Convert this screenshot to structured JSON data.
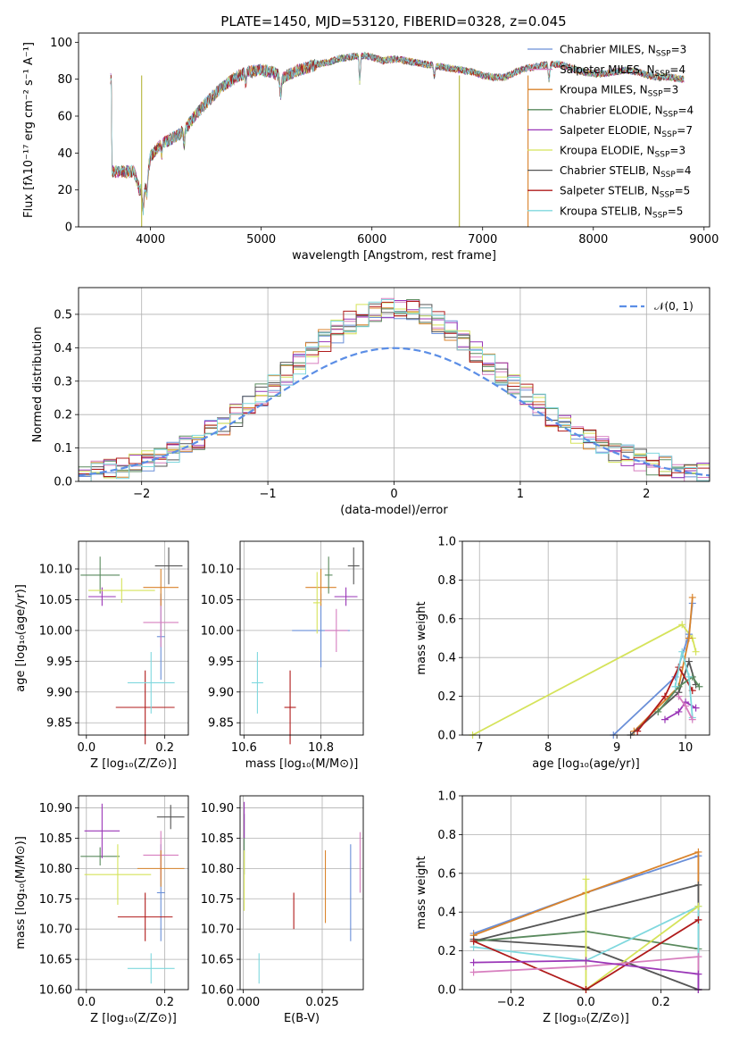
{
  "figure_title": "PLATE=1450, MJD=53120, FIBERID=0328, z=0.045",
  "colors": {
    "Chabrier MILES": "#6a8fd8",
    "Salpeter MILES": "#d77fbf",
    "Kroupa MILES": "#d9832b",
    "Chabrier ELODIE": "#5a8a5e",
    "Salpeter ELODIE": "#9a36b7",
    "Kroupa ELODIE": "#d5e35a",
    "Chabrier STELIB": "#555555",
    "Salpeter STELIB": "#b01b1b",
    "Kroupa STELIB": "#7fd8de"
  },
  "labels": {
    "spec_xlabel": "wavelength [Angstrom, rest frame]",
    "spec_ylabel": "Flux [fλ10⁻¹⁷ erg cm⁻² s⁻¹ A⁻¹]",
    "hist_xlabel": "(data-model)/error",
    "hist_ylabel": "Normed distribution",
    "normal_label": "𝒩(0, 1)",
    "z_label": "Z [log₁₀(Z/Z⊙)]",
    "mass_label": "mass [log₁₀(M/M⊙)]",
    "age_label": "age  [log₁₀(age/yr)]",
    "ebv_label": "E(B-V)",
    "mw_label": "mass weight"
  },
  "chart_data": [
    {
      "type": "line",
      "panel": "spectrum",
      "title": "PLATE=1450, MJD=53120, FIBERID=0328, z=0.045",
      "xlabel": "wavelength [Angstrom, rest frame]",
      "ylabel": "Flux [fλ10⁻¹⁷ erg cm⁻² s⁻¹ A⁻¹]",
      "xlim": [
        3350,
        9050
      ],
      "ylim": [
        0,
        105
      ],
      "xticks": [
        4000,
        5000,
        6000,
        7000,
        8000,
        9000
      ],
      "yticks": [
        0,
        20,
        40,
        60,
        80,
        100
      ],
      "continuum": [
        [
          3650,
          30
        ],
        [
          3850,
          30
        ],
        [
          3900,
          20
        ],
        [
          3950,
          22
        ],
        [
          4000,
          38
        ],
        [
          4100,
          45
        ],
        [
          4200,
          48
        ],
        [
          4300,
          52
        ],
        [
          4400,
          60
        ],
        [
          4500,
          67
        ],
        [
          4600,
          73
        ],
        [
          4700,
          78
        ],
        [
          4800,
          82
        ],
        [
          4900,
          84
        ],
        [
          5000,
          85
        ],
        [
          5100,
          84
        ],
        [
          5200,
          81
        ],
        [
          5300,
          84
        ],
        [
          5400,
          86
        ],
        [
          5500,
          88
        ],
        [
          5600,
          89
        ],
        [
          5700,
          91
        ],
        [
          5800,
          92
        ],
        [
          5900,
          93
        ],
        [
          6000,
          92
        ],
        [
          6100,
          90
        ],
        [
          6200,
          91
        ],
        [
          6300,
          90
        ],
        [
          6400,
          89
        ],
        [
          6500,
          88
        ],
        [
          6600,
          87
        ],
        [
          6700,
          86
        ],
        [
          6800,
          85
        ],
        [
          6900,
          84
        ],
        [
          7000,
          82
        ],
        [
          7100,
          81
        ],
        [
          7200,
          81
        ],
        [
          7300,
          84
        ],
        [
          7400,
          86
        ],
        [
          7500,
          87
        ],
        [
          7600,
          88
        ],
        [
          7700,
          88
        ],
        [
          7800,
          86
        ],
        [
          7900,
          84
        ],
        [
          8000,
          83
        ],
        [
          8100,
          83
        ],
        [
          8200,
          84
        ],
        [
          8300,
          85
        ],
        [
          8400,
          84
        ],
        [
          8500,
          82
        ],
        [
          8600,
          81
        ],
        [
          8700,
          81
        ],
        [
          8800,
          80
        ]
      ],
      "spikes": [
        {
          "x": 3920,
          "color": "#b5b53a"
        },
        {
          "x": 6790,
          "color": "#b5b53a"
        },
        {
          "x": 7410,
          "color": "#d9832b"
        }
      ],
      "legend": [
        {
          "name": "Chabrier MILES",
          "n": "3"
        },
        {
          "name": "Salpeter MILES",
          "n": "4"
        },
        {
          "name": "Kroupa MILES",
          "n": "3"
        },
        {
          "name": "Chabrier ELODIE",
          "n": "4"
        },
        {
          "name": "Salpeter ELODIE",
          "n": "7"
        },
        {
          "name": "Kroupa ELODIE",
          "n": "3"
        },
        {
          "name": "Chabrier STELIB",
          "n": "4"
        },
        {
          "name": "Salpeter STELIB",
          "n": "5"
        },
        {
          "name": "Kroupa STELIB",
          "n": "5"
        }
      ],
      "legend_placement": "upper right"
    },
    {
      "type": "line",
      "panel": "residual-histogram",
      "xlabel": "(data-model)/error",
      "ylabel": "Normed distribution",
      "xlim": [
        -2.5,
        2.5
      ],
      "ylim": [
        0,
        0.58
      ],
      "xticks": [
        -2,
        -1,
        0,
        1,
        2
      ],
      "yticks": [
        0.0,
        0.1,
        0.2,
        0.3,
        0.4,
        0.5
      ],
      "bin_width": 0.1,
      "reference": {
        "name": "𝒩(0, 1)",
        "color": "#5b8ee6"
      },
      "legend_placement": "upper right",
      "grid": true
    },
    {
      "type": "scatter",
      "panel": "age-vs-Z",
      "xlim": [
        -0.02,
        0.26
      ],
      "ylim": [
        9.83,
        10.145
      ],
      "xticks": [
        0.0,
        0.2
      ],
      "yticks": [
        9.85,
        9.9,
        9.95,
        10.0,
        10.05,
        10.1
      ],
      "points": [
        {
          "series": "Chabrier MILES",
          "x": 0.19,
          "y": 9.99,
          "xe": 0.01,
          "ye": 0.07
        },
        {
          "series": "Salpeter MILES",
          "x": 0.19,
          "y": 10.013,
          "xe": 0.045,
          "ye": 0.04
        },
        {
          "series": "Kroupa MILES",
          "x": 0.19,
          "y": 10.07,
          "xe": 0.045,
          "ye": 0.03
        },
        {
          "series": "Chabrier ELODIE",
          "x": 0.035,
          "y": 10.09,
          "xe": 0.05,
          "ye": 0.03
        },
        {
          "series": "Salpeter ELODIE",
          "x": 0.04,
          "y": 10.055,
          "xe": 0.035,
          "ye": 0.015
        },
        {
          "series": "Kroupa ELODIE",
          "x": 0.09,
          "y": 10.065,
          "xe": 0.085,
          "ye": 0.02
        },
        {
          "series": "Chabrier STELIB",
          "x": 0.21,
          "y": 10.105,
          "xe": 0.035,
          "ye": 0.03
        },
        {
          "series": "Salpeter STELIB",
          "x": 0.15,
          "y": 9.875,
          "xe": 0.075,
          "ye": 0.06
        },
        {
          "series": "Kroupa STELIB",
          "x": 0.165,
          "y": 9.915,
          "xe": 0.06,
          "ye": 0.05
        }
      ]
    },
    {
      "type": "scatter",
      "panel": "age-vs-mass",
      "xlim": [
        10.59,
        10.91
      ],
      "ylim": [
        9.83,
        10.145
      ],
      "xticks": [
        10.6,
        10.8
      ],
      "yticks": [
        9.85,
        9.9,
        9.95,
        10.0,
        10.05,
        10.1
      ],
      "points": [
        {
          "series": "Chabrier MILES",
          "x": 10.8,
          "y": 10.0,
          "xe": 0.075,
          "ye": 0.06
        },
        {
          "series": "Salpeter MILES",
          "x": 10.84,
          "y": 10.0,
          "xe": 0.03,
          "ye": 0.035
        },
        {
          "series": "Kroupa MILES",
          "x": 10.8,
          "y": 10.07,
          "xe": 0.04,
          "ye": 0.03
        },
        {
          "series": "Chabrier ELODIE",
          "x": 10.82,
          "y": 10.09,
          "xe": 0.01,
          "ye": 0.03
        },
        {
          "series": "Salpeter ELODIE",
          "x": 10.865,
          "y": 10.055,
          "xe": 0.03,
          "ye": 0.015
        },
        {
          "series": "Kroupa ELODIE",
          "x": 10.79,
          "y": 10.045,
          "xe": 0.01,
          "ye": 0.05
        },
        {
          "series": "Chabrier STELIB",
          "x": 10.885,
          "y": 10.105,
          "xe": 0.015,
          "ye": 0.03
        },
        {
          "series": "Salpeter STELIB",
          "x": 10.72,
          "y": 9.875,
          "xe": 0.015,
          "ye": 0.06
        },
        {
          "series": "Kroupa STELIB",
          "x": 10.635,
          "y": 9.915,
          "xe": 0.015,
          "ye": 0.05
        }
      ]
    },
    {
      "type": "scatter",
      "panel": "mass-vs-Z",
      "xlim": [
        -0.02,
        0.26
      ],
      "ylim": [
        10.6,
        10.92
      ],
      "xticks": [
        0.0,
        0.2
      ],
      "yticks": [
        10.6,
        10.65,
        10.7,
        10.75,
        10.8,
        10.85,
        10.9
      ],
      "points": [
        {
          "series": "Chabrier MILES",
          "x": 0.19,
          "y": 10.76,
          "xe": 0.01,
          "ye": 0.08
        },
        {
          "series": "Salpeter MILES",
          "x": 0.19,
          "y": 10.822,
          "xe": 0.045,
          "ye": 0.04
        },
        {
          "series": "Kroupa MILES",
          "x": 0.19,
          "y": 10.8,
          "xe": 0.06,
          "ye": 0.03
        },
        {
          "series": "Chabrier ELODIE",
          "x": 0.035,
          "y": 10.82,
          "xe": 0.05,
          "ye": 0.015
        },
        {
          "series": "Salpeter ELODIE",
          "x": 0.04,
          "y": 10.862,
          "xe": 0.045,
          "ye": 0.045
        },
        {
          "series": "Kroupa ELODIE",
          "x": 0.08,
          "y": 10.79,
          "xe": 0.085,
          "ye": 0.05
        },
        {
          "series": "Chabrier STELIB",
          "x": 0.215,
          "y": 10.885,
          "xe": 0.035,
          "ye": 0.02
        },
        {
          "series": "Salpeter STELIB",
          "x": 0.15,
          "y": 10.72,
          "xe": 0.07,
          "ye": 0.04
        },
        {
          "series": "Kroupa STELIB",
          "x": 0.165,
          "y": 10.635,
          "xe": 0.06,
          "ye": 0.025
        }
      ]
    },
    {
      "type": "scatter",
      "panel": "mass-vs-EBV",
      "xlim": [
        -0.001,
        0.038
      ],
      "ylim": [
        10.6,
        10.92
      ],
      "xticks": [
        0.0,
        0.025
      ],
      "yticks": [
        10.6,
        10.65,
        10.7,
        10.75,
        10.8,
        10.85,
        10.9
      ],
      "points": [
        {
          "series": "Chabrier MILES",
          "x": 0.034,
          "y": 10.76,
          "xe": 0,
          "ye": 0.08
        },
        {
          "series": "Salpeter MILES",
          "x": 0.037,
          "y": 10.81,
          "xe": 0,
          "ye": 0.05
        },
        {
          "series": "Kroupa MILES",
          "x": 0.026,
          "y": 10.77,
          "xe": 0,
          "ye": 0.06
        },
        {
          "series": "Chabrier ELODIE",
          "x": 0.0003,
          "y": 10.84,
          "xe": 0,
          "ye": 0.05
        },
        {
          "series": "Salpeter ELODIE",
          "x": 0.0003,
          "y": 10.88,
          "xe": 0,
          "ye": 0.03
        },
        {
          "series": "Kroupa ELODIE",
          "x": 0.0003,
          "y": 10.78,
          "xe": 0,
          "ye": 0.05
        },
        {
          "series": "Salpeter STELIB",
          "x": 0.016,
          "y": 10.73,
          "xe": 0,
          "ye": 0.03
        },
        {
          "series": "Kroupa STELIB",
          "x": 0.005,
          "y": 10.635,
          "xe": 0,
          "ye": 0.025
        }
      ]
    },
    {
      "type": "line",
      "panel": "mass-weight-vs-age",
      "xlabel": "age  [log₁₀(age/yr)]",
      "ylabel": "mass weight",
      "xlim": [
        6.75,
        10.35
      ],
      "ylim": [
        0,
        1
      ],
      "xticks": [
        7,
        8,
        9,
        10
      ],
      "yticks": [
        0.0,
        0.2,
        0.4,
        0.6,
        0.8,
        1.0
      ],
      "series": [
        {
          "name": "Kroupa ELODIE",
          "x": [
            6.9,
            9.95,
            10.1,
            10.15
          ],
          "y": [
            0.0,
            0.57,
            0.5,
            0.43
          ]
        },
        {
          "name": "Chabrier MILES",
          "x": [
            8.95,
            9.85,
            10.05,
            10.1
          ],
          "y": [
            0.0,
            0.3,
            0.52,
            0.68
          ]
        },
        {
          "name": "Kroupa MILES",
          "x": [
            9.25,
            9.9,
            10.05,
            10.1
          ],
          "y": [
            0.02,
            0.25,
            0.5,
            0.71
          ]
        },
        {
          "name": "Chabrier STELIB",
          "x": [
            9.2,
            9.9,
            10.05,
            10.15
          ],
          "y": [
            0.0,
            0.22,
            0.38,
            0.26
          ]
        },
        {
          "name": "Salpeter STELIB",
          "x": [
            9.3,
            9.7,
            9.9,
            10.1
          ],
          "y": [
            0.02,
            0.2,
            0.35,
            0.23
          ]
        },
        {
          "name": "Chabrier ELODIE",
          "x": [
            9.6,
            9.9,
            10.1,
            10.2
          ],
          "y": [
            0.12,
            0.25,
            0.3,
            0.25
          ]
        },
        {
          "name": "Salpeter ELODIE",
          "x": [
            9.7,
            9.9,
            10.0,
            10.15
          ],
          "y": [
            0.08,
            0.12,
            0.17,
            0.14
          ]
        },
        {
          "name": "Kroupa STELIB",
          "x": [
            9.85,
            9.95,
            10.05,
            10.1
          ],
          "y": [
            0.25,
            0.43,
            0.3,
            0.09
          ]
        },
        {
          "name": "Salpeter MILES",
          "x": [
            9.9,
            10.0,
            10.1
          ],
          "y": [
            0.2,
            0.15,
            0.08
          ]
        }
      ]
    },
    {
      "type": "line",
      "panel": "mass-weight-vs-Z",
      "xlabel": "Z [log₁₀(Z/Z⊙)]",
      "ylabel": "mass weight",
      "xlim": [
        -0.33,
        0.33
      ],
      "ylim": [
        0,
        1
      ],
      "xticks": [
        -0.2,
        0.0,
        0.2
      ],
      "yticks": [
        0.0,
        0.2,
        0.4,
        0.6,
        0.8,
        1.0
      ],
      "series": [
        {
          "name": "Chabrier MILES",
          "x": [
            -0.3,
            0.0,
            0.3,
            0.3
          ],
          "y": [
            0.29,
            0.5,
            0.69,
            0.0
          ]
        },
        {
          "name": "Kroupa MILES",
          "x": [
            -0.3,
            0.0,
            0.3,
            0.3
          ],
          "y": [
            0.28,
            0.5,
            0.71,
            0.0
          ]
        },
        {
          "name": "Chabrier STELIB",
          "x": [
            -0.3,
            0.3,
            0.3,
            0.0,
            -0.3
          ],
          "y": [
            0.25,
            0.54,
            0.0,
            0.22,
            0.26
          ]
        },
        {
          "name": "Chabrier ELODIE",
          "x": [
            -0.3,
            0.0,
            0.3
          ],
          "y": [
            0.25,
            0.3,
            0.21
          ]
        },
        {
          "name": "Kroupa STELIB",
          "x": [
            -0.3,
            0.0,
            0.3,
            0.3
          ],
          "y": [
            0.22,
            0.15,
            0.43,
            0.0
          ]
        },
        {
          "name": "Kroupa ELODIE",
          "x": [
            0.0,
            0.0,
            0.3
          ],
          "y": [
            0.57,
            0.0,
            0.43
          ]
        },
        {
          "name": "Salpeter STELIB",
          "x": [
            -0.3,
            0.0,
            0.0,
            0.3
          ],
          "y": [
            0.25,
            0.0,
            0.0,
            0.36
          ]
        },
        {
          "name": "Salpeter MILES",
          "x": [
            -0.3,
            0.0,
            0.3,
            0.3
          ],
          "y": [
            0.09,
            0.12,
            0.17,
            0.0
          ]
        },
        {
          "name": "Salpeter ELODIE",
          "x": [
            -0.3,
            0.0,
            0.3,
            0.3
          ],
          "y": [
            0.14,
            0.15,
            0.08,
            0.0
          ]
        }
      ]
    }
  ]
}
